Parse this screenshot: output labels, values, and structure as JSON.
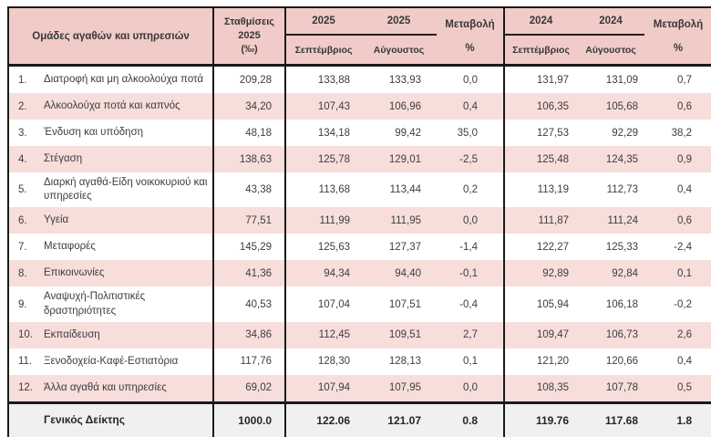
{
  "colors": {
    "header_bg": "#f0cbc7",
    "row_shaded_bg": "#f7dedb",
    "total_row_bg": "#f0f0f0",
    "border": "#1a1a1a",
    "text": "#3d3d3d"
  },
  "table": {
    "col_headers": {
      "groups_label": "Ομάδες αγαθών και υπηρεσιών",
      "weights_lines": [
        "Σταθμίσεις",
        "2025",
        "(‰)"
      ],
      "year_2025": "2025",
      "year_2024": "2024",
      "month_september": "Σεπτέμβριος",
      "month_august": "Αύγουστος",
      "change_label": "Μεταβολή",
      "percent_label": "%"
    },
    "rows": [
      {
        "num": "1.",
        "label": "Διατροφή και μη αλκοολούχα ποτά",
        "weight": "209,28",
        "sep25": "133,88",
        "aug25": "133,93",
        "chg25": "0,0",
        "sep24": "131,97",
        "aug24": "131,09",
        "chg24": "0,7"
      },
      {
        "num": "2.",
        "label": "Αλκοολούχα ποτά και καπνός",
        "weight": "34,20",
        "sep25": "107,43",
        "aug25": "106,96",
        "chg25": "0,4",
        "sep24": "106,35",
        "aug24": "105,68",
        "chg24": "0,6"
      },
      {
        "num": "3.",
        "label": "Ένδυση και υπόδηση",
        "weight": "48,18",
        "sep25": "134,18",
        "aug25": "99,42",
        "chg25": "35,0",
        "sep24": "127,53",
        "aug24": "92,29",
        "chg24": "38,2"
      },
      {
        "num": "4.",
        "label": "Στέγαση",
        "weight": "138,63",
        "sep25": "125,78",
        "aug25": "129,01",
        "chg25": "-2,5",
        "sep24": "125,48",
        "aug24": "124,35",
        "chg24": "0,9"
      },
      {
        "num": "5.",
        "label": "Διαρκή αγαθά-Είδη νοικοκυριού και υπηρεσίες",
        "weight": "43,38",
        "sep25": "113,68",
        "aug25": "113,44",
        "chg25": "0,2",
        "sep24": "113,19",
        "aug24": "112,73",
        "chg24": "0,4"
      },
      {
        "num": "6.",
        "label": "Υγεία",
        "weight": "77,51",
        "sep25": "111,99",
        "aug25": "111,95",
        "chg25": "0,0",
        "sep24": "111,87",
        "aug24": "111,24",
        "chg24": "0,6"
      },
      {
        "num": "7.",
        "label": "Μεταφορές",
        "weight": "145,29",
        "sep25": "125,63",
        "aug25": "127,37",
        "chg25": "-1,4",
        "sep24": "122,27",
        "aug24": "125,33",
        "chg24": "-2,4"
      },
      {
        "num": "8.",
        "label": "Επικοινωνίες",
        "weight": "41,36",
        "sep25": "94,34",
        "aug25": "94,40",
        "chg25": "-0,1",
        "sep24": "92,89",
        "aug24": "92,84",
        "chg24": "0,1"
      },
      {
        "num": "9.",
        "label": "Αναψυχή-Πολιτιστικές δραστηριότητες",
        "weight": "40,53",
        "sep25": "107,04",
        "aug25": "107,51",
        "chg25": "-0,4",
        "sep24": "105,94",
        "aug24": "106,18",
        "chg24": "-0,2"
      },
      {
        "num": "10.",
        "label": "Εκπαίδευση",
        "weight": "34,86",
        "sep25": "112,45",
        "aug25": "109,51",
        "chg25": "2,7",
        "sep24": "109,47",
        "aug24": "106,73",
        "chg24": "2,6"
      },
      {
        "num": "11.",
        "label": "Ξενοδοχεία-Καφέ-Εστιατόρια",
        "weight": "117,76",
        "sep25": "128,30",
        "aug25": "128,13",
        "chg25": "0,1",
        "sep24": "121,20",
        "aug24": "120,66",
        "chg24": "0,4"
      },
      {
        "num": "12.",
        "label": "Άλλα αγαθά και υπηρεσίες",
        "weight": "69,02",
        "sep25": "107,94",
        "aug25": "107,95",
        "chg25": "0,0",
        "sep24": "108,35",
        "aug24": "107,78",
        "chg24": "0,5"
      }
    ],
    "total_row": {
      "label": "Γενικός Δείκτης",
      "weight": "1000.0",
      "sep25": "122.06",
      "aug25": "121.07",
      "chg25": "0.8",
      "sep24": "119.76",
      "aug24": "117.68",
      "chg24": "1.8"
    }
  }
}
